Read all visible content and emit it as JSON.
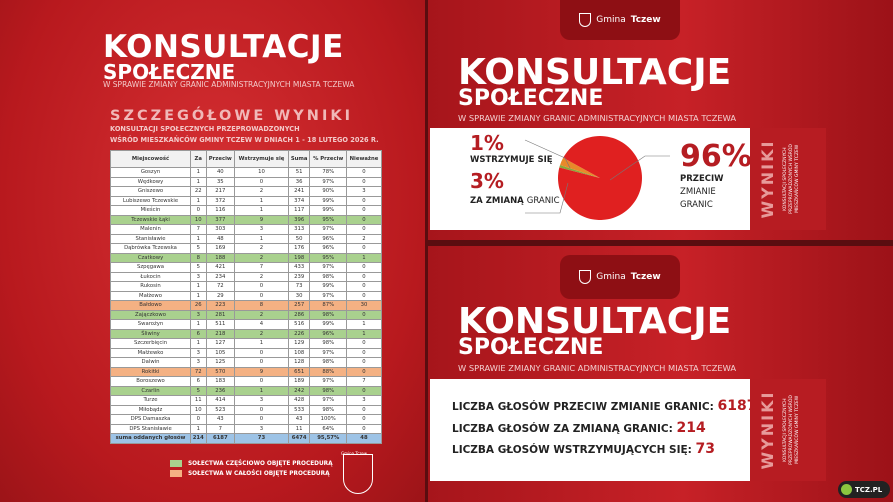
{
  "left": {
    "title1": "KONSULTACJE",
    "title2": "SPOŁECZNE",
    "subtitle": "W SPRAWIE ZMIANY GRANIC ADMINISTRACYJNYCH MIASTA TCZEWA",
    "heading": "SZCZEGÓŁOWE WYNIKI",
    "heading2a": "KONSULTACJI SPOŁECZNYCH PRZEPROWADZONYCH",
    "heading2b": "WŚRÓD MIESZKAŃCÓW GMINY TCZEW W DNIACH 1 - 18 LUTEGO 2026 R.",
    "columns": [
      "Miejscowość",
      "Za",
      "Przeciw",
      "Wstrzymuje się",
      "Suma",
      "% Przeciw",
      "Nieważne"
    ],
    "rows": [
      [
        "Goszyn",
        "1",
        "40",
        "10",
        "51",
        "78%",
        "0",
        ""
      ],
      [
        "Wędkowy",
        "1",
        "35",
        "0",
        "36",
        "97%",
        "0",
        ""
      ],
      [
        "Gniszewo",
        "22",
        "217",
        "2",
        "241",
        "90%",
        "3",
        ""
      ],
      [
        "Lubiszewo Tczewskie",
        "1",
        "372",
        "1",
        "374",
        "99%",
        "0",
        ""
      ],
      [
        "Mieścin",
        "0",
        "116",
        "1",
        "117",
        "99%",
        "0",
        ""
      ],
      [
        "Tczewskie Łąki",
        "10",
        "377",
        "9",
        "396",
        "95%",
        "0",
        "g"
      ],
      [
        "Malenin",
        "7",
        "303",
        "3",
        "313",
        "97%",
        "0",
        ""
      ],
      [
        "Stanisławie",
        "1",
        "48",
        "1",
        "50",
        "96%",
        "2",
        ""
      ],
      [
        "Dąbrówka Tczewska",
        "5",
        "169",
        "2",
        "176",
        "96%",
        "0",
        ""
      ],
      [
        "Czatkowy",
        "8",
        "188",
        "2",
        "198",
        "95%",
        "1",
        "g"
      ],
      [
        "Szpęgawa",
        "5",
        "421",
        "7",
        "433",
        "97%",
        "0",
        ""
      ],
      [
        "Łukocin",
        "3",
        "234",
        "2",
        "239",
        "98%",
        "0",
        ""
      ],
      [
        "Rukosin",
        "1",
        "72",
        "0",
        "73",
        "99%",
        "0",
        ""
      ],
      [
        "Małżewo",
        "1",
        "29",
        "0",
        "30",
        "97%",
        "0",
        ""
      ],
      [
        "Bałdowo",
        "26",
        "223",
        "8",
        "257",
        "87%",
        "30",
        "o"
      ],
      [
        "Zajączkowo",
        "3",
        "281",
        "2",
        "286",
        "98%",
        "0",
        "g"
      ],
      [
        "Swarożyn",
        "1",
        "511",
        "4",
        "516",
        "99%",
        "1",
        ""
      ],
      [
        "Śliwiny",
        "6",
        "218",
        "2",
        "226",
        "96%",
        "1",
        "g"
      ],
      [
        "Szczerbięcin",
        "1",
        "127",
        "1",
        "129",
        "98%",
        "0",
        ""
      ],
      [
        "Małżewko",
        "3",
        "105",
        "0",
        "108",
        "97%",
        "0",
        ""
      ],
      [
        "Dalwin",
        "3",
        "125",
        "0",
        "128",
        "98%",
        "0",
        ""
      ],
      [
        "Rokitki",
        "72",
        "570",
        "9",
        "651",
        "88%",
        "0",
        "o"
      ],
      [
        "Boroszewo",
        "6",
        "183",
        "0",
        "189",
        "97%",
        "7",
        ""
      ],
      [
        "Czarlin",
        "5",
        "236",
        "1",
        "242",
        "98%",
        "0",
        "g"
      ],
      [
        "Turze",
        "11",
        "414",
        "3",
        "428",
        "97%",
        "3",
        ""
      ],
      [
        "Miłobądz",
        "10",
        "523",
        "0",
        "533",
        "98%",
        "0",
        ""
      ],
      [
        "DPS Damaszka",
        "0",
        "43",
        "0",
        "43",
        "100%",
        "0",
        ""
      ],
      [
        "DPS Stanisławie",
        "1",
        "7",
        "3",
        "11",
        "64%",
        "0",
        ""
      ]
    ],
    "total": [
      "suma oddanych głosów",
      "214",
      "6187",
      "73",
      "6474",
      "95,57%",
      "48"
    ],
    "legend": [
      {
        "label": "SOŁECTWA CZĘŚCIOWO OBJĘTE PROCEDURĄ",
        "color": "#a9d18e"
      },
      {
        "label": "SOŁECTWA W CAŁOŚCI OBJĘTE PROCEDURĄ",
        "color": "#f4b183"
      }
    ],
    "crest_text": "Gmina Tczew"
  },
  "logo": {
    "prefix": "Gmina",
    "name": "Tczew"
  },
  "panel": {
    "title1": "KONSULTACJE",
    "title2": "SPOŁECZNE",
    "subtitle": "W SPRAWIE ZMIANY GRANIC ADMINISTRACYJNYCH MIASTA TCZEWA",
    "strip_title": "WYNIKI",
    "strip_lines": [
      "KONSULTACJI SPOŁECZNYCH",
      "PRZEPROWADZONYCH WŚRÓD",
      "MIESZKAŃCÓW GMINY TCZEW"
    ]
  },
  "chart_data": {
    "type": "pie",
    "slices": [
      {
        "label": "PRZECIW ZMIANIE GRANIC",
        "value": 96,
        "color": "#e02020"
      },
      {
        "label": "ZA ZMIANĄ GRANIC",
        "value": 3,
        "color": "#e8892a"
      },
      {
        "label": "WSTRZYMUJE SIĘ",
        "value": 1,
        "color": "#8aa83a"
      }
    ],
    "labels": {
      "p1": "1%",
      "l1": "WSTRZYMUJE SIĘ",
      "p3": "3%",
      "l3a": "ZA ZMIANĄ",
      "l3b": "GRANIC",
      "p96": "96%",
      "l96a": "PRZECIW",
      "l96b": "ZMIANIE",
      "l96c": "GRANIC"
    }
  },
  "counts": [
    {
      "label": "LICZBA GŁOSÓW PRZECIW ZMIANIE GRANIC:",
      "value": "6187"
    },
    {
      "label": "LICZBA GŁOSÓW ZA ZMIANĄ GRANIC:",
      "value": "214"
    },
    {
      "label": "LICZBA GŁOSÓW WSTRZYMUJĄCYCH SIĘ:",
      "value": "73"
    }
  ],
  "badge": "TCZ.PL"
}
